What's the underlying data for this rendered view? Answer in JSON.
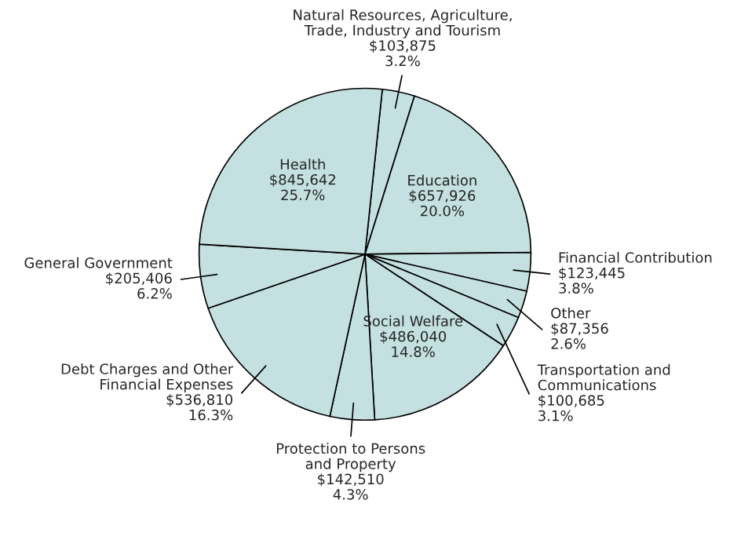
{
  "chart_data": {
    "type": "pie",
    "categories": [
      "Natural Resources, Agriculture,\nTrade, Industry and Tourism",
      "Education",
      "Financial Contribution",
      "Other",
      "Transportation and\nCommunications",
      "Social Welfare",
      "Protection to Persons\nand Property",
      "Debt Charges and Other\nFinancial Expenses",
      "General Government",
      "Health"
    ],
    "values": [
      103875,
      657926,
      123445,
      87356,
      100685,
      486040,
      142510,
      536810,
      205406,
      845642
    ],
    "value_labels": [
      "$103,875\n3.2%",
      "$657,926\n20.0%",
      "$123,445\n3.8%",
      "$87,356\n2.6%",
      "$100,685\n3.1%",
      "$486,040\n14.8%",
      "$142,510\n4.3%",
      "$536,810\n16.3%",
      "$205,406\n6.2%",
      "$845,642\n25.7%"
    ],
    "colors": [
      "#c4e0e0",
      "#c4e0e0",
      "#c4e0e0",
      "#c4e0e0",
      "#c4e0e0",
      "#c4e0e0",
      "#c4e0e0",
      "#c4e0e0",
      "#c4e0e0",
      "#c4e0e0"
    ],
    "legend": false
  }
}
